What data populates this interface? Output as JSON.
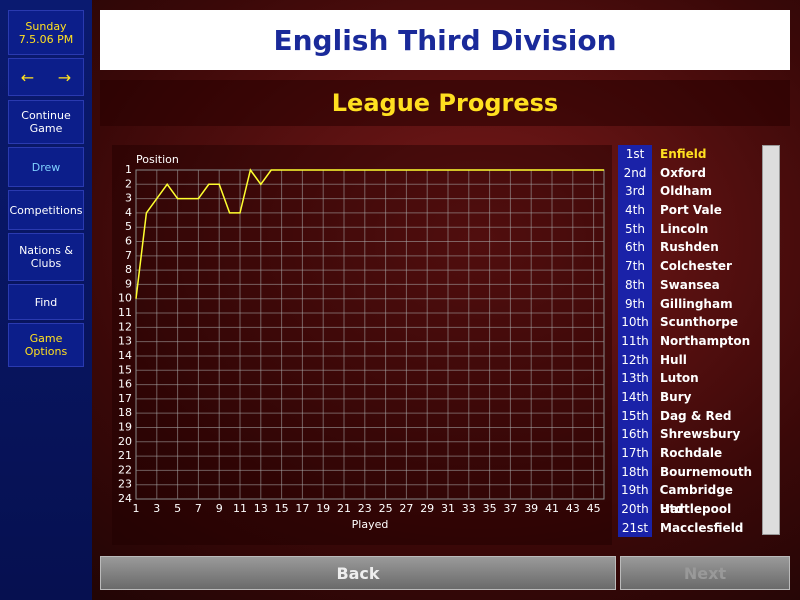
{
  "sidebar": {
    "day": "Sunday",
    "datetime": "7.5.06 PM",
    "arrow_left": "←",
    "arrow_right": "→",
    "items": [
      "Continue Game",
      "Drew",
      "Competitions",
      "Nations & Clubs",
      "Find",
      "Game Options"
    ]
  },
  "header": {
    "title": "English Third Division",
    "subtitle": "League Progress"
  },
  "chart_data": {
    "type": "line",
    "ylabel": "Position",
    "xlabel": "Played",
    "x": [
      1,
      2,
      3,
      4,
      5,
      6,
      7,
      8,
      9,
      10,
      11,
      12,
      13,
      14,
      15,
      16,
      17,
      18,
      19,
      20,
      21,
      22,
      23,
      24,
      25,
      26,
      27,
      28,
      29,
      30,
      31,
      32,
      33,
      34,
      35,
      36,
      37,
      38,
      39,
      40,
      41,
      42,
      43,
      44,
      45,
      46
    ],
    "values": [
      10,
      4,
      3,
      2,
      3,
      3,
      3,
      2,
      2,
      4,
      4,
      1,
      2,
      1,
      1,
      1,
      1,
      1,
      1,
      1,
      1,
      1,
      1,
      1,
      1,
      1,
      1,
      1,
      1,
      1,
      1,
      1,
      1,
      1,
      1,
      1,
      1,
      1,
      1,
      1,
      1,
      1,
      1,
      1,
      1,
      1
    ],
    "color": "#ffff30",
    "xlim": [
      1,
      46
    ],
    "xticks": [
      1,
      3,
      5,
      7,
      9,
      11,
      13,
      15,
      17,
      19,
      21,
      23,
      25,
      27,
      29,
      31,
      33,
      35,
      37,
      39,
      41,
      43,
      45
    ],
    "ylim": [
      24,
      1
    ],
    "yticks": [
      1,
      2,
      3,
      4,
      5,
      6,
      7,
      8,
      9,
      10,
      11,
      12,
      13,
      14,
      15,
      16,
      17,
      18,
      19,
      20,
      21,
      22,
      23,
      24
    ],
    "grid": true
  },
  "table": {
    "rows": [
      [
        "1st",
        "Enfield"
      ],
      [
        "2nd",
        "Oxford"
      ],
      [
        "3rd",
        "Oldham"
      ],
      [
        "4th",
        "Port Vale"
      ],
      [
        "5th",
        "Lincoln"
      ],
      [
        "6th",
        "Rushden"
      ],
      [
        "7th",
        "Colchester"
      ],
      [
        "8th",
        "Swansea"
      ],
      [
        "9th",
        "Gillingham"
      ],
      [
        "10th",
        "Scunthorpe"
      ],
      [
        "11th",
        "Northampton"
      ],
      [
        "12th",
        "Hull"
      ],
      [
        "13th",
        "Luton"
      ],
      [
        "14th",
        "Bury"
      ],
      [
        "15th",
        "Dag & Red"
      ],
      [
        "16th",
        "Shrewsbury"
      ],
      [
        "17th",
        "Rochdale"
      ],
      [
        "18th",
        "Bournemouth"
      ],
      [
        "19th",
        "Cambridge Utd"
      ],
      [
        "20th",
        "Hartlepool"
      ],
      [
        "21st",
        "Macclesfield"
      ]
    ]
  },
  "buttons": {
    "back": "Back",
    "next": "Next"
  }
}
